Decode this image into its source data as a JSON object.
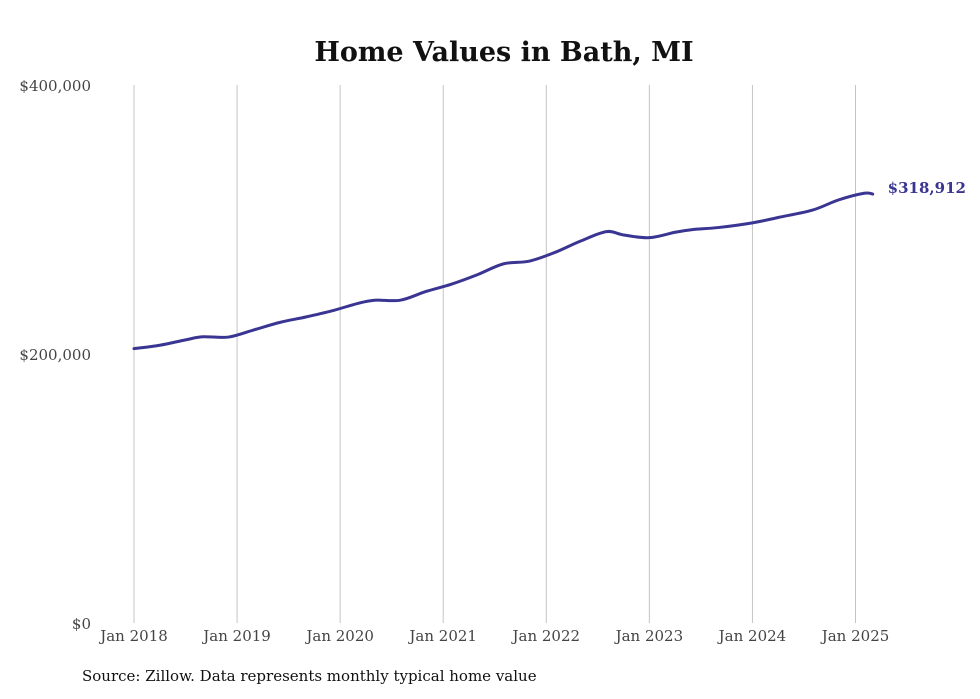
{
  "chart_data": {
    "type": "line",
    "title": "Home Values in Bath, MI",
    "xlabel": "",
    "ylabel": "",
    "source": "Source: Zillow. Data represents monthly typical home value",
    "ylim": [
      0,
      400000
    ],
    "xlim": [
      "2018-01",
      "2025-03"
    ],
    "grid": "vertical",
    "legend": "none",
    "line_color": "#3a3592",
    "y_ticks": [
      {
        "value": 0,
        "label": "$0"
      },
      {
        "value": 200000,
        "label": "$200,000"
      },
      {
        "value": 400000,
        "label": "$400,000"
      }
    ],
    "x_ticks": [
      {
        "date": "2018-01",
        "label": "Jan 2018"
      },
      {
        "date": "2019-01",
        "label": "Jan 2019"
      },
      {
        "date": "2020-01",
        "label": "Jan 2020"
      },
      {
        "date": "2021-01",
        "label": "Jan 2021"
      },
      {
        "date": "2022-01",
        "label": "Jan 2022"
      },
      {
        "date": "2023-01",
        "label": "Jan 2023"
      },
      {
        "date": "2024-01",
        "label": "Jan 2024"
      },
      {
        "date": "2025-01",
        "label": "Jan 2025"
      }
    ],
    "end_label": "$318,912",
    "series": [
      {
        "points": [
          {
            "x": "2018-01",
            "y": 204000
          },
          {
            "x": "2018-04",
            "y": 206500
          },
          {
            "x": "2018-07",
            "y": 210500
          },
          {
            "x": "2018-09",
            "y": 212800
          },
          {
            "x": "2018-12",
            "y": 212600
          },
          {
            "x": "2019-03",
            "y": 218000
          },
          {
            "x": "2019-06",
            "y": 223500
          },
          {
            "x": "2019-09",
            "y": 227500
          },
          {
            "x": "2019-12",
            "y": 232000
          },
          {
            "x": "2020-03",
            "y": 237500
          },
          {
            "x": "2020-05",
            "y": 240000
          },
          {
            "x": "2020-08",
            "y": 240000
          },
          {
            "x": "2020-11",
            "y": 246500
          },
          {
            "x": "2021-02",
            "y": 252000
          },
          {
            "x": "2021-05",
            "y": 259000
          },
          {
            "x": "2021-08",
            "y": 267000
          },
          {
            "x": "2021-11",
            "y": 269000
          },
          {
            "x": "2022-02",
            "y": 275500
          },
          {
            "x": "2022-05",
            "y": 284000
          },
          {
            "x": "2022-08",
            "y": 291000
          },
          {
            "x": "2022-10",
            "y": 288500
          },
          {
            "x": "2023-01",
            "y": 286500
          },
          {
            "x": "2023-04",
            "y": 290500
          },
          {
            "x": "2023-06",
            "y": 292500
          },
          {
            "x": "2023-09",
            "y": 294000
          },
          {
            "x": "2024-01",
            "y": 297500
          },
          {
            "x": "2024-04",
            "y": 301500
          },
          {
            "x": "2024-08",
            "y": 307000
          },
          {
            "x": "2024-11",
            "y": 314500
          },
          {
            "x": "2025-02",
            "y": 319500
          },
          {
            "x": "2025-03",
            "y": 318912
          }
        ]
      }
    ]
  }
}
